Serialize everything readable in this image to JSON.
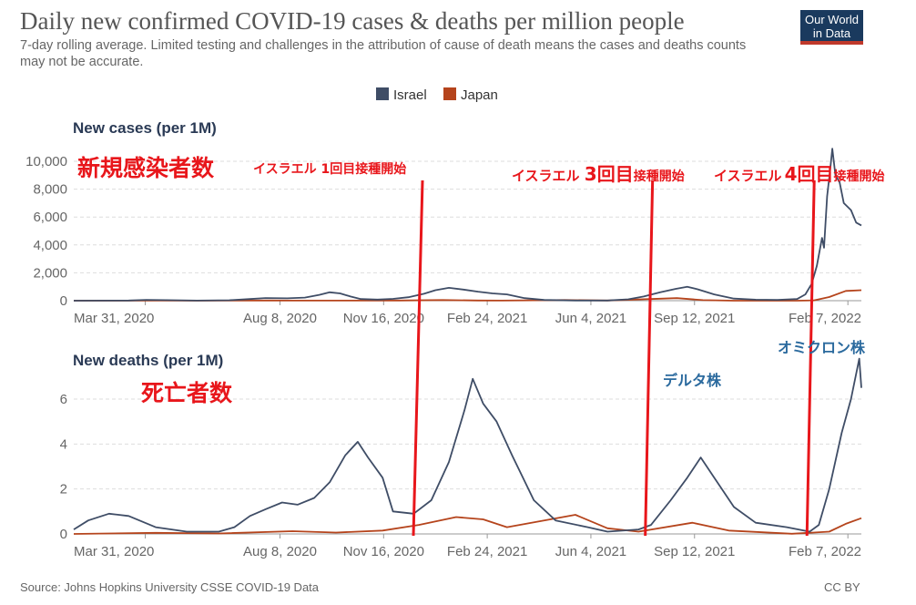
{
  "header": {
    "title": "Daily new confirmed COVID-19 cases & deaths per million people",
    "subtitle": "7-day rolling average. Limited testing and challenges in the attribution of cause of death means the cases and deaths counts may not be accurate.",
    "logo_line1": "Our World",
    "logo_line2": "in Data"
  },
  "footer": {
    "source": "Source: Johns Hopkins University CSSE COVID-19 Data",
    "license": "CC BY"
  },
  "colors": {
    "israel": "#3f4d66",
    "japan": "#b5441c",
    "annotation_red": "#e8161b",
    "annotation_blue": "#2b6a9e",
    "grid": "#dddddd"
  },
  "chart_data": [
    {
      "type": "line",
      "title": "New cases (per 1M)",
      "x_start": "2020-01-22",
      "x_end": "2022-02-20",
      "x_ticks": [
        "Mar 31, 2020",
        "Aug 8, 2020",
        "Nov 16, 2020",
        "Feb 24, 2021",
        "Jun 4, 2021",
        "Sep 12, 2021",
        "Feb 7, 2022"
      ],
      "ylim": [
        0,
        11000
      ],
      "y_ticks": [
        0,
        2000,
        4000,
        6000,
        8000,
        10000
      ],
      "y_tick_labels": [
        "0",
        "2,000",
        "4,000",
        "6,000",
        "8,000",
        "10,000"
      ],
      "grid": true,
      "series": [
        {
          "name": "Israel",
          "color": "#3f4d66",
          "points": [
            [
              "2020-01-22",
              0
            ],
            [
              "2020-03-15",
              15
            ],
            [
              "2020-04-01",
              60
            ],
            [
              "2020-04-20",
              40
            ],
            [
              "2020-05-20",
              5
            ],
            [
              "2020-06-20",
              30
            ],
            [
              "2020-07-10",
              120
            ],
            [
              "2020-07-25",
              190
            ],
            [
              "2020-08-15",
              170
            ],
            [
              "2020-09-01",
              220
            ],
            [
              "2020-09-15",
              420
            ],
            [
              "2020-09-25",
              600
            ],
            [
              "2020-10-05",
              520
            ],
            [
              "2020-10-15",
              300
            ],
            [
              "2020-10-25",
              120
            ],
            [
              "2020-11-10",
              80
            ],
            [
              "2020-11-25",
              130
            ],
            [
              "2020-12-10",
              250
            ],
            [
              "2020-12-25",
              500
            ],
            [
              "2021-01-05",
              750
            ],
            [
              "2021-01-18",
              920
            ],
            [
              "2021-02-01",
              800
            ],
            [
              "2021-02-15",
              650
            ],
            [
              "2021-03-01",
              520
            ],
            [
              "2021-03-15",
              450
            ],
            [
              "2021-04-01",
              180
            ],
            [
              "2021-04-20",
              50
            ],
            [
              "2021-05-20",
              10
            ],
            [
              "2021-06-20",
              15
            ],
            [
              "2021-07-10",
              100
            ],
            [
              "2021-07-25",
              300
            ],
            [
              "2021-08-10",
              600
            ],
            [
              "2021-08-25",
              850
            ],
            [
              "2021-09-05",
              1000
            ],
            [
              "2021-09-15",
              820
            ],
            [
              "2021-10-01",
              450
            ],
            [
              "2021-10-20",
              150
            ],
            [
              "2021-11-10",
              70
            ],
            [
              "2021-12-01",
              60
            ],
            [
              "2021-12-20",
              120
            ],
            [
              "2021-12-28",
              450
            ],
            [
              "2022-01-03",
              1200
            ],
            [
              "2022-01-08",
              2500
            ],
            [
              "2022-01-13",
              4500
            ],
            [
              "2022-01-15",
              3800
            ],
            [
              "2022-01-18",
              7500
            ],
            [
              "2022-01-21",
              9500
            ],
            [
              "2022-01-23",
              10900
            ],
            [
              "2022-01-26",
              9000
            ],
            [
              "2022-01-30",
              8500
            ],
            [
              "2022-02-03",
              7000
            ],
            [
              "2022-02-10",
              6500
            ],
            [
              "2022-02-15",
              5600
            ],
            [
              "2022-02-20",
              5400
            ]
          ]
        },
        {
          "name": "Japan",
          "color": "#b5441c",
          "points": [
            [
              "2020-01-22",
              0
            ],
            [
              "2020-04-15",
              4
            ],
            [
              "2020-05-20",
              1
            ],
            [
              "2020-08-01",
              10
            ],
            [
              "2020-08-20",
              7
            ],
            [
              "2020-10-20",
              4
            ],
            [
              "2020-12-01",
              15
            ],
            [
              "2021-01-12",
              48
            ],
            [
              "2021-02-15",
              12
            ],
            [
              "2021-03-10",
              8
            ],
            [
              "2021-05-10",
              45
            ],
            [
              "2021-06-20",
              12
            ],
            [
              "2021-08-26",
              185
            ],
            [
              "2021-09-20",
              40
            ],
            [
              "2021-10-20",
              3
            ],
            [
              "2021-12-20",
              2
            ],
            [
              "2022-01-05",
              20
            ],
            [
              "2022-01-20",
              260
            ],
            [
              "2022-02-05",
              700
            ],
            [
              "2022-02-20",
              750
            ]
          ]
        }
      ]
    },
    {
      "type": "line",
      "title": "New deaths (per 1M)",
      "x_start": "2020-01-22",
      "x_end": "2022-02-20",
      "x_ticks": [
        "Mar 31, 2020",
        "Aug 8, 2020",
        "Nov 16, 2020",
        "Feb 24, 2021",
        "Jun 4, 2021",
        "Sep 12, 2021",
        "Feb 7, 2022"
      ],
      "ylim": [
        0,
        7.5
      ],
      "y_ticks": [
        0,
        2,
        4,
        6
      ],
      "y_tick_labels": [
        "0",
        "2",
        "4",
        "6"
      ],
      "grid": true,
      "series": [
        {
          "name": "Israel",
          "color": "#3f4d66",
          "points": [
            [
              "2020-01-22",
              0.2
            ],
            [
              "2020-02-05",
              0.6
            ],
            [
              "2020-02-25",
              0.9
            ],
            [
              "2020-03-15",
              0.8
            ],
            [
              "2020-04-10",
              0.3
            ],
            [
              "2020-05-10",
              0.1
            ],
            [
              "2020-06-10",
              0.1
            ],
            [
              "2020-06-25",
              0.3
            ],
            [
              "2020-07-10",
              0.8
            ],
            [
              "2020-07-25",
              1.1
            ],
            [
              "2020-08-10",
              1.4
            ],
            [
              "2020-08-25",
              1.3
            ],
            [
              "2020-09-10",
              1.6
            ],
            [
              "2020-09-25",
              2.3
            ],
            [
              "2020-10-10",
              3.5
            ],
            [
              "2020-10-22",
              4.1
            ],
            [
              "2020-11-01",
              3.4
            ],
            [
              "2020-11-15",
              2.5
            ],
            [
              "2020-11-25",
              1.0
            ],
            [
              "2020-12-15",
              0.9
            ],
            [
              "2021-01-01",
              1.5
            ],
            [
              "2021-01-18",
              3.2
            ],
            [
              "2021-02-02",
              5.5
            ],
            [
              "2021-02-10",
              6.9
            ],
            [
              "2021-02-20",
              5.8
            ],
            [
              "2021-03-05",
              5.0
            ],
            [
              "2021-03-20",
              3.5
            ],
            [
              "2021-04-10",
              1.5
            ],
            [
              "2021-05-01",
              0.6
            ],
            [
              "2021-06-01",
              0.3
            ],
            [
              "2021-06-20",
              0.1
            ],
            [
              "2021-07-20",
              0.2
            ],
            [
              "2021-08-01",
              0.4
            ],
            [
              "2021-08-20",
              1.5
            ],
            [
              "2021-09-05",
              2.5
            ],
            [
              "2021-09-18",
              3.4
            ],
            [
              "2021-10-01",
              2.5
            ],
            [
              "2021-10-20",
              1.2
            ],
            [
              "2021-11-10",
              0.5
            ],
            [
              "2021-12-10",
              0.3
            ],
            [
              "2022-01-01",
              0.1
            ],
            [
              "2022-01-10",
              0.4
            ],
            [
              "2022-01-20",
              2.0
            ],
            [
              "2022-02-01",
              4.5
            ],
            [
              "2022-02-10",
              6.0
            ],
            [
              "2022-02-18",
              7.8
            ],
            [
              "2022-02-20",
              6.5
            ]
          ]
        },
        {
          "name": "Japan",
          "color": "#b5441c",
          "points": [
            [
              "2020-01-22",
              0
            ],
            [
              "2020-04-10",
              0.05
            ],
            [
              "2020-06-10",
              0.02
            ],
            [
              "2020-08-20",
              0.12
            ],
            [
              "2020-10-01",
              0.06
            ],
            [
              "2020-11-15",
              0.15
            ],
            [
              "2020-12-20",
              0.4
            ],
            [
              "2021-01-25",
              0.75
            ],
            [
              "2021-02-20",
              0.65
            ],
            [
              "2021-03-15",
              0.3
            ],
            [
              "2021-05-20",
              0.85
            ],
            [
              "2021-06-20",
              0.25
            ],
            [
              "2021-07-20",
              0.1
            ],
            [
              "2021-09-10",
              0.5
            ],
            [
              "2021-10-15",
              0.15
            ],
            [
              "2021-12-15",
              0.01
            ],
            [
              "2022-01-20",
              0.1
            ],
            [
              "2022-02-05",
              0.45
            ],
            [
              "2022-02-20",
              0.7
            ]
          ]
        }
      ]
    }
  ],
  "legend": [
    {
      "name": "Israel",
      "color": "#3f4d66"
    },
    {
      "name": "Japan",
      "color": "#b5441c"
    }
  ],
  "annotations": {
    "cases_label": "新規感染者数",
    "deaths_label": "死亡者数",
    "dose1": {
      "prefix": "イスラエル ",
      "number": "1",
      "suffix": "回目接種開始",
      "date": "2020-12-20"
    },
    "dose3": {
      "prefix": "イスラエル ",
      "number": "3回目",
      "suffix": "接種開始",
      "date": "2021-07-30"
    },
    "dose4": {
      "prefix": "イスラエル",
      "number": "4回目",
      "suffix": "接種開始",
      "date": "2022-01-02"
    },
    "delta": "デルタ株",
    "omicron": "オミクロン株"
  }
}
